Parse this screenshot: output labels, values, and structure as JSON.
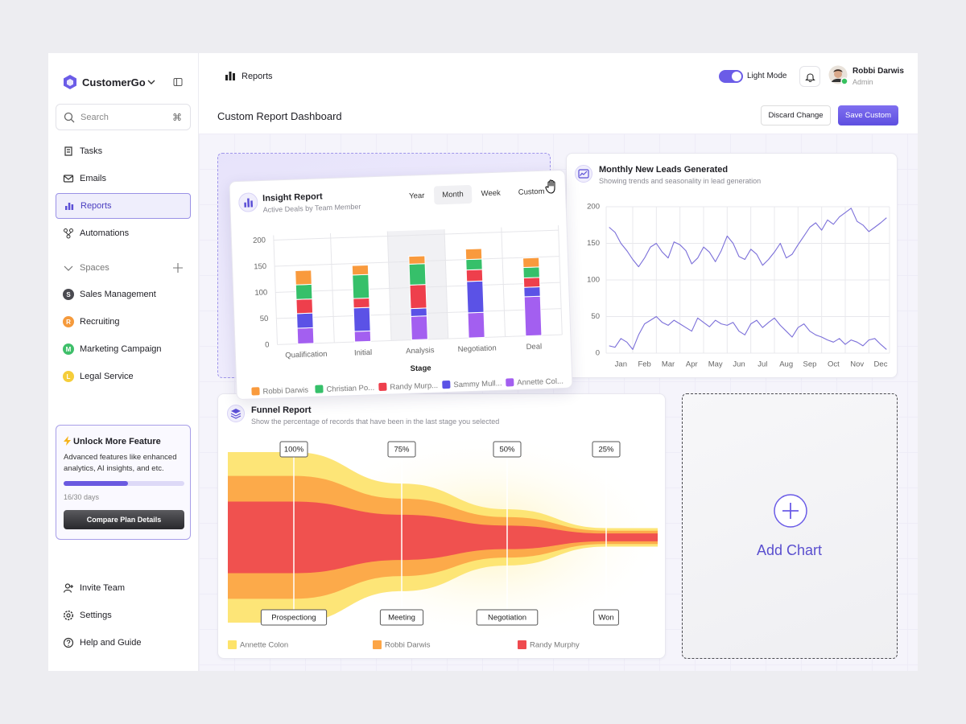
{
  "sidebar": {
    "brand": "CustomerGo",
    "search": "Search",
    "shortcut": "⌘",
    "nav": [
      "Tasks",
      "Emails",
      "Reports",
      "Automations"
    ],
    "active_nav": 2,
    "spaces_title": "Spaces",
    "spaces": [
      {
        "initial": "S",
        "name": "Sales Management",
        "color": "#4a4a50"
      },
      {
        "initial": "R",
        "name": "Recruiting",
        "color": "#f59a3c"
      },
      {
        "initial": "M",
        "name": "Marketing Campaign",
        "color": "#3fbf6a"
      },
      {
        "initial": "L",
        "name": "Legal Service",
        "color": "#f5cd3a"
      }
    ],
    "promo": {
      "title": "Unlock More Feature",
      "text": "Advanced features like enhanced analytics, AI insights, and etc.",
      "progress": 16,
      "progress_max": 30,
      "progress_label": "16/30 days",
      "button": "Compare Plan Details"
    },
    "footer_nav": [
      "Invite Team",
      "Settings",
      "Help and Guide"
    ]
  },
  "header": {
    "breadcrumb": "Reports",
    "mode": "Light Mode",
    "user": {
      "name": "Robbi Darwis",
      "role": "Admin"
    }
  },
  "toolbar": {
    "title": "Custom Report Dashboard",
    "buttons": [
      "Discard Change",
      "Save Custom"
    ]
  },
  "add_chart": "Add Chart",
  "chart_data": [
    {
      "type": "bar",
      "stacked": true,
      "title": "Insight Report",
      "subtitle": "Active Deals by Team Member",
      "tabs": [
        "Year",
        "Month",
        "Week",
        "Custom"
      ],
      "selected_tab": 1,
      "categories": [
        "Qualification",
        "Initial",
        "Analysis",
        "Negotiation",
        "Deal"
      ],
      "highlighted_category": 2,
      "xlabel": "Stage",
      "series": [
        {
          "name": "Robbi Darwis",
          "color": "#f99a3d",
          "values": [
            27,
            18,
            15,
            20,
            18
          ]
        },
        {
          "name": "Christian Po...",
          "color": "#36c06a",
          "values": [
            28,
            45,
            40,
            20,
            20
          ]
        },
        {
          "name": "Randy Murp...",
          "color": "#ee3f4c",
          "values": [
            27,
            18,
            45,
            22,
            18
          ]
        },
        {
          "name": "Sammy Mull...",
          "color": "#5b52e6",
          "values": [
            28,
            45,
            15,
            60,
            18
          ]
        },
        {
          "name": "Annette Col...",
          "color": "#a35ff0",
          "values": [
            30,
            20,
            45,
            48,
            75
          ]
        }
      ],
      "ylim": [
        0,
        200
      ],
      "yticks": [
        0,
        50,
        100,
        150,
        200
      ],
      "grid": true
    },
    {
      "type": "line",
      "title": "Monthly New Leads Generated",
      "subtitle": "Showing trends and seasonality in lead generation",
      "categories": [
        null,
        null,
        "Jan",
        null,
        null,
        null,
        "Feb",
        null,
        null,
        null,
        "Mar",
        null,
        null,
        null,
        "Apr",
        null,
        null,
        null,
        "May",
        null,
        null,
        null,
        "Jun",
        null,
        null,
        null,
        "Jul",
        null,
        null,
        null,
        "Aug",
        null,
        null,
        null,
        "Sep",
        null,
        null,
        null,
        "Oct",
        null,
        null,
        null,
        "Nov",
        null,
        null,
        null,
        "Dec",
        null
      ],
      "series": [
        {
          "color": "#7b6fd9",
          "values": [
            172,
            165,
            150,
            140,
            128,
            118,
            130,
            145,
            150,
            138,
            130,
            152,
            148,
            140,
            122,
            130,
            145,
            138,
            125,
            140,
            160,
            150,
            132,
            128,
            142,
            135,
            120,
            128,
            138,
            150,
            130,
            135,
            148,
            160,
            172,
            178,
            168,
            182,
            176,
            186,
            192,
            198,
            180,
            175,
            166,
            172,
            178,
            185
          ]
        },
        {
          "color": "#7b6fd9",
          "values": [
            10,
            8,
            20,
            15,
            5,
            25,
            40,
            45,
            50,
            42,
            38,
            45,
            40,
            35,
            30,
            48,
            42,
            36,
            45,
            40,
            38,
            42,
            30,
            25,
            40,
            45,
            35,
            42,
            48,
            38,
            30,
            22,
            35,
            40,
            30,
            25,
            22,
            18,
            15,
            20,
            12,
            18,
            15,
            10,
            18,
            20,
            12,
            5
          ]
        }
      ],
      "ylim": [
        0,
        200
      ],
      "yticks": [
        0,
        50,
        100,
        150,
        200
      ],
      "grid": true
    },
    {
      "type": "funnel",
      "title": "Funnel Report",
      "subtitle": "Show the percentage of records that have been in the last stage you selected",
      "categories": [
        "Prospectiong",
        "Meeting",
        "Negotiation",
        "Won"
      ],
      "values": [
        100,
        75,
        50,
        25
      ],
      "value_labels": [
        "100%",
        "75%",
        "50%",
        "25%"
      ],
      "series": [
        {
          "name": "Annette Colon",
          "color": "#fde36b"
        },
        {
          "name": "Robbi Darwis",
          "color": "#fca546"
        },
        {
          "name": "Randy Murphy",
          "color": "#ef4a4f"
        }
      ]
    }
  ]
}
